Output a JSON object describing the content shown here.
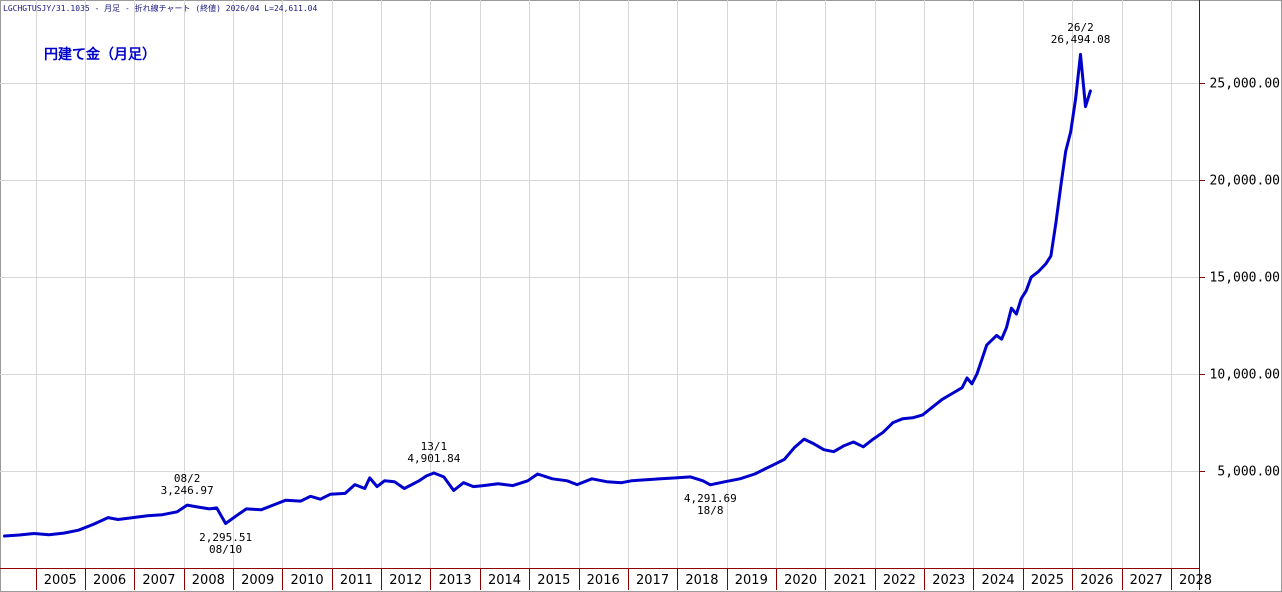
{
  "header": {
    "text": "LGCHGTUSJY/31.1035 - 月足 - 折れ線チャート (終値)  2026/04 L=24,611.04"
  },
  "chart_data": {
    "type": "line",
    "title": "円建て金（月足）",
    "xlabel": "",
    "ylabel": "",
    "x_ticks": [
      "2005",
      "2006",
      "2007",
      "2008",
      "2009",
      "2010",
      "2011",
      "2012",
      "2013",
      "2014",
      "2015",
      "2016",
      "2017",
      "2018",
      "2019",
      "2020",
      "2021",
      "2022",
      "2023",
      "2024",
      "2025",
      "2026",
      "2027",
      "2028"
    ],
    "y_ticks": [
      "5,000.00",
      "10,000.00",
      "15,000.00",
      "20,000.00",
      "25,000.00"
    ],
    "y_tick_values": [
      5000,
      10000,
      15000,
      20000,
      25000
    ],
    "xlim": [
      2004.25,
      2028.5
    ],
    "ylim": [
      0,
      29300
    ],
    "grid": true,
    "color": "#0000cc",
    "series": [
      {
        "name": "",
        "points": [
          [
            2004.3,
            1650
          ],
          [
            2004.6,
            1700
          ],
          [
            2004.9,
            1780
          ],
          [
            2005.2,
            1720
          ],
          [
            2005.5,
            1800
          ],
          [
            2005.8,
            1950
          ],
          [
            2006.1,
            2250
          ],
          [
            2006.4,
            2600
          ],
          [
            2006.6,
            2500
          ],
          [
            2006.9,
            2600
          ],
          [
            2007.2,
            2700
          ],
          [
            2007.5,
            2750
          ],
          [
            2007.8,
            2900
          ],
          [
            2008.0,
            3246.97
          ],
          [
            2008.2,
            3150
          ],
          [
            2008.45,
            3050
          ],
          [
            2008.6,
            3100
          ],
          [
            2008.78,
            2295.51
          ],
          [
            2009.0,
            2700
          ],
          [
            2009.2,
            3050
          ],
          [
            2009.5,
            3000
          ],
          [
            2009.8,
            3300
          ],
          [
            2010.0,
            3500
          ],
          [
            2010.3,
            3450
          ],
          [
            2010.5,
            3700
          ],
          [
            2010.7,
            3550
          ],
          [
            2010.9,
            3800
          ],
          [
            2011.2,
            3850
          ],
          [
            2011.4,
            4300
          ],
          [
            2011.6,
            4100
          ],
          [
            2011.7,
            4650
          ],
          [
            2011.85,
            4200
          ],
          [
            2012.0,
            4500
          ],
          [
            2012.2,
            4450
          ],
          [
            2012.4,
            4100
          ],
          [
            2012.7,
            4500
          ],
          [
            2012.85,
            4750
          ],
          [
            2013.0,
            4901.84
          ],
          [
            2013.2,
            4700
          ],
          [
            2013.4,
            4000
          ],
          [
            2013.6,
            4400
          ],
          [
            2013.8,
            4200
          ],
          [
            2014.0,
            4250
          ],
          [
            2014.3,
            4350
          ],
          [
            2014.6,
            4250
          ],
          [
            2014.9,
            4500
          ],
          [
            2015.1,
            4850
          ],
          [
            2015.4,
            4600
          ],
          [
            2015.7,
            4500
          ],
          [
            2015.9,
            4300
          ],
          [
            2016.2,
            4600
          ],
          [
            2016.5,
            4450
          ],
          [
            2016.8,
            4400
          ],
          [
            2017.0,
            4500
          ],
          [
            2017.3,
            4550
          ],
          [
            2017.6,
            4600
          ],
          [
            2017.9,
            4650
          ],
          [
            2018.2,
            4700
          ],
          [
            2018.45,
            4500
          ],
          [
            2018.6,
            4291.69
          ],
          [
            2018.9,
            4450
          ],
          [
            2019.2,
            4600
          ],
          [
            2019.5,
            4850
          ],
          [
            2019.7,
            5100
          ],
          [
            2019.9,
            5350
          ],
          [
            2020.1,
            5600
          ],
          [
            2020.3,
            6200
          ],
          [
            2020.5,
            6650
          ],
          [
            2020.7,
            6400
          ],
          [
            2020.9,
            6100
          ],
          [
            2021.1,
            6000
          ],
          [
            2021.3,
            6300
          ],
          [
            2021.5,
            6500
          ],
          [
            2021.7,
            6250
          ],
          [
            2021.9,
            6650
          ],
          [
            2022.1,
            7000
          ],
          [
            2022.3,
            7500
          ],
          [
            2022.5,
            7700
          ],
          [
            2022.7,
            7750
          ],
          [
            2022.9,
            7900
          ],
          [
            2023.1,
            8300
          ],
          [
            2023.3,
            8700
          ],
          [
            2023.5,
            9000
          ],
          [
            2023.7,
            9300
          ],
          [
            2023.8,
            9800
          ],
          [
            2023.9,
            9500
          ],
          [
            2024.0,
            10000
          ],
          [
            2024.2,
            11500
          ],
          [
            2024.4,
            12000
          ],
          [
            2024.5,
            11800
          ],
          [
            2024.6,
            12400
          ],
          [
            2024.7,
            13400
          ],
          [
            2024.8,
            13100
          ],
          [
            2024.9,
            13900
          ],
          [
            2025.0,
            14300
          ],
          [
            2025.1,
            15000
          ],
          [
            2025.25,
            15300
          ],
          [
            2025.4,
            15700
          ],
          [
            2025.5,
            16100
          ],
          [
            2025.6,
            17800
          ],
          [
            2025.7,
            19700
          ],
          [
            2025.8,
            21500
          ],
          [
            2025.9,
            22500
          ],
          [
            2026.0,
            24200
          ],
          [
            2026.1,
            26494.08
          ],
          [
            2026.2,
            23800
          ],
          [
            2026.3,
            24611.04
          ]
        ]
      }
    ],
    "annotations": [
      {
        "date": "08/2",
        "value": "3,246.97",
        "x": 2008.0,
        "y": 3246.97,
        "position": "above"
      },
      {
        "date": "08/10",
        "value": "2,295.51",
        "x": 2008.78,
        "y": 2295.51,
        "position": "below"
      },
      {
        "date": "13/1",
        "value": "4,901.84",
        "x": 2013.0,
        "y": 4901.84,
        "position": "above"
      },
      {
        "date": "18/8",
        "value": "4,291.69",
        "x": 2018.6,
        "y": 4291.69,
        "position": "below"
      },
      {
        "date": "26/2",
        "value": "26,494.08",
        "x": 2026.1,
        "y": 26494.08,
        "position": "above"
      }
    ]
  }
}
